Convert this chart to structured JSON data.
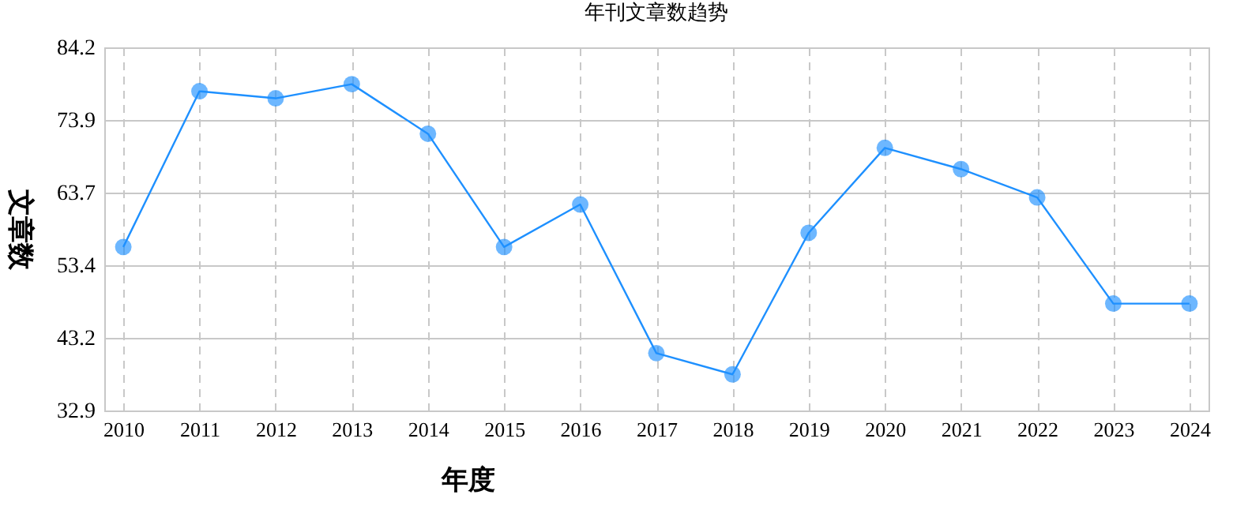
{
  "chart_data": {
    "type": "line",
    "title": "年刊文章数趋势",
    "xlabel": "年度",
    "ylabel": "文章数",
    "categories": [
      "2010",
      "2011",
      "2012",
      "2013",
      "2014",
      "2015",
      "2016",
      "2017",
      "2018",
      "2019",
      "2020",
      "2021",
      "2022",
      "2023",
      "2024"
    ],
    "series": [
      {
        "color": "#1e90ff",
        "values": [
          56,
          78,
          77,
          79,
          72,
          56,
          62,
          41,
          38,
          58,
          70,
          67,
          63,
          48,
          48
        ]
      }
    ],
    "ylim": [
      32.9,
      84.2
    ],
    "yticks": [
      32.9,
      43.2,
      53.4,
      63.7,
      73.9,
      84.2
    ],
    "grid": true,
    "marker": "circle",
    "line_style": "solid"
  }
}
